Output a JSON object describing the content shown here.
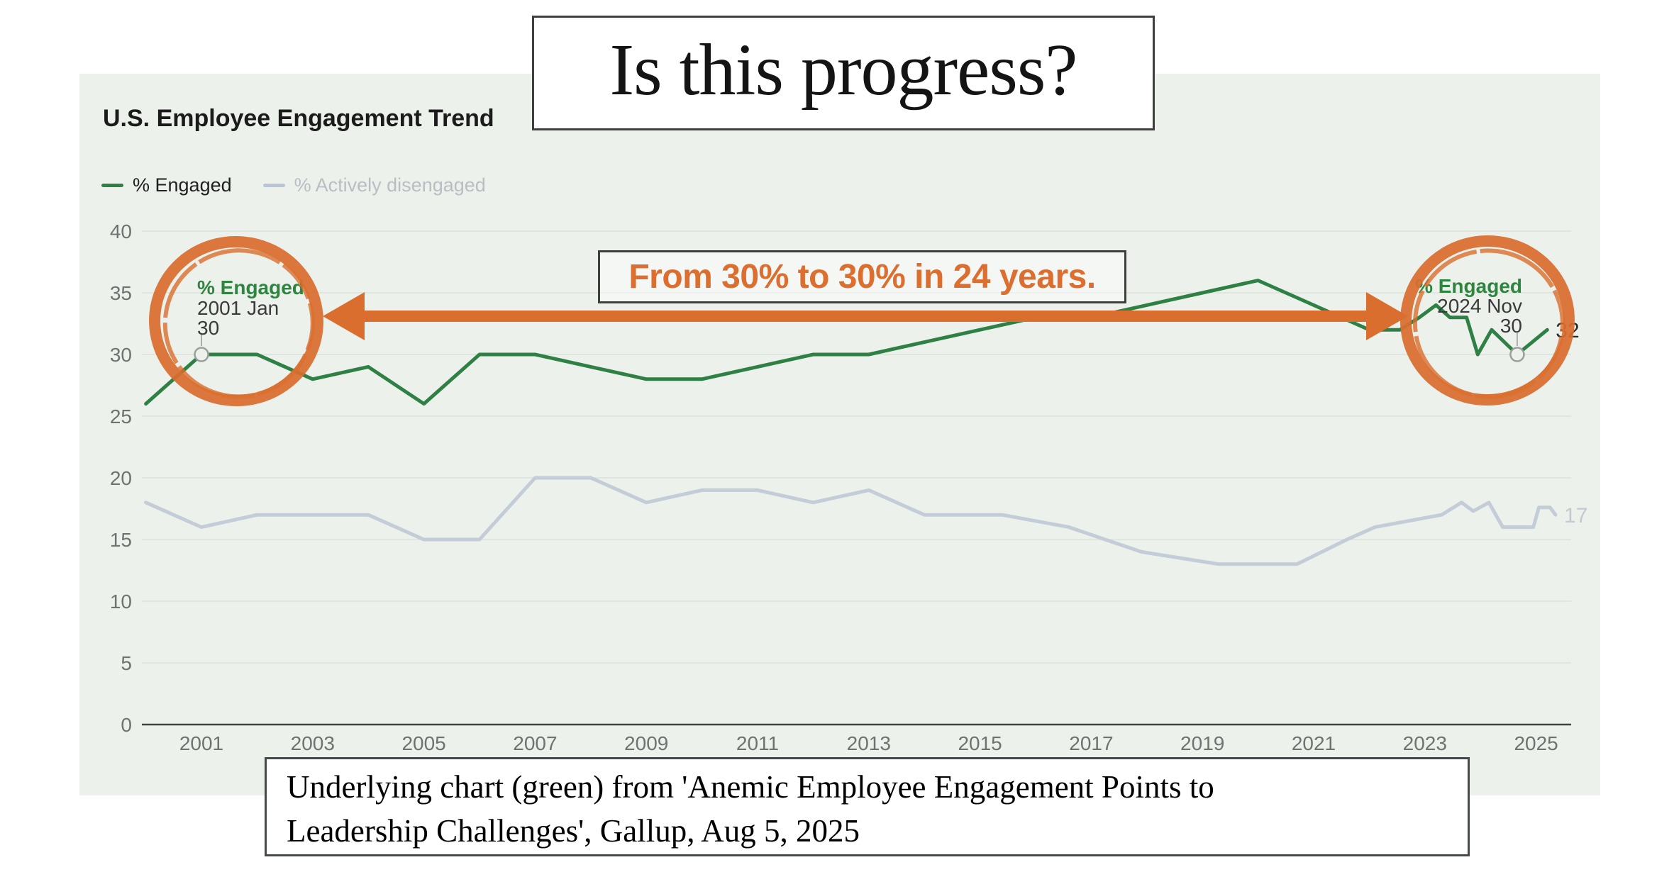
{
  "header": {
    "big_question": "Is this progress?"
  },
  "chart_panel": {
    "title": "U.S. Employee Engagement Trend",
    "legend": [
      {
        "label": "% Engaged",
        "swatch_color": "#2f8044",
        "text_color": "#202020"
      },
      {
        "label": "% Actively disengaged",
        "swatch_color": "#b9c4d6",
        "text_color": "#b9bec3"
      }
    ],
    "colors": {
      "panel_bg": "#edf1ec",
      "gridline": "#dbe1da",
      "axis_line": "#41453f",
      "tick_text": "#6e736f"
    }
  },
  "annotations": {
    "arrow_label": "From 30% to 30% in 24 years.",
    "accent_orange": "#d96e2e",
    "left_callout": {
      "series": "% Engaged",
      "date": "2001 Jan",
      "value": "30"
    },
    "right_callout": {
      "series": "% Engaged",
      "date": "2024 Nov",
      "value": "30"
    },
    "caption_line1": "Underlying chart (green) from 'Anemic Employee Engagement Points to",
    "caption_line2": "Leadership Challenges', Gallup, Aug 5, 2025"
  },
  "chart_data": {
    "type": "line",
    "title": "U.S. Employee Engagement Trend",
    "xlabel": "",
    "ylabel": "",
    "xlim": [
      2000,
      2025.6
    ],
    "ylim": [
      0,
      40
    ],
    "grid": true,
    "legend_position": "top-left",
    "x_ticks": [
      2001,
      2003,
      2005,
      2007,
      2009,
      2011,
      2013,
      2015,
      2017,
      2019,
      2021,
      2023,
      2025
    ],
    "y_ticks": [
      0,
      5,
      10,
      15,
      20,
      25,
      30,
      35,
      40
    ],
    "series": [
      {
        "name": "% Engaged",
        "color": "#2f8044",
        "end_label": "32",
        "end_label_color": "#2b2b2b",
        "points": [
          [
            2000,
            26
          ],
          [
            2001,
            30
          ],
          [
            2002,
            30
          ],
          [
            2003,
            28
          ],
          [
            2004,
            29
          ],
          [
            2005,
            26
          ],
          [
            2006,
            30
          ],
          [
            2007,
            30
          ],
          [
            2008,
            29
          ],
          [
            2009,
            28
          ],
          [
            2010,
            28
          ],
          [
            2011,
            29
          ],
          [
            2012,
            30
          ],
          [
            2013,
            30
          ],
          [
            2014,
            31
          ],
          [
            2015,
            32
          ],
          [
            2016,
            33
          ],
          [
            2017,
            33
          ],
          [
            2018,
            34
          ],
          [
            2019,
            35
          ],
          [
            2020,
            36
          ],
          [
            2021,
            34
          ],
          [
            2022,
            32
          ],
          [
            2022.55,
            32
          ],
          [
            2022.9,
            33
          ],
          [
            2023.2,
            34
          ],
          [
            2023.45,
            33
          ],
          [
            2023.75,
            33
          ],
          [
            2023.95,
            30
          ],
          [
            2024.2,
            32
          ],
          [
            2024.66,
            30
          ],
          [
            2025.2,
            32
          ]
        ]
      },
      {
        "name": "% Actively disengaged",
        "color": "#c3ccd7",
        "end_label": "17",
        "end_label_color": "#c4c9ce",
        "points": [
          [
            2000,
            18
          ],
          [
            2001,
            16
          ],
          [
            2002,
            17
          ],
          [
            2003,
            17
          ],
          [
            2004,
            17
          ],
          [
            2005,
            15
          ],
          [
            2006,
            15
          ],
          [
            2007,
            20
          ],
          [
            2008,
            20
          ],
          [
            2009,
            18
          ],
          [
            2010,
            19
          ],
          [
            2011,
            19
          ],
          [
            2012,
            18
          ],
          [
            2013,
            19
          ],
          [
            2014,
            17
          ],
          [
            2015.4,
            17
          ],
          [
            2016.6,
            16
          ],
          [
            2017.9,
            14
          ],
          [
            2019.3,
            13
          ],
          [
            2020.7,
            13
          ],
          [
            2021.6,
            15
          ],
          [
            2022.1,
            16
          ],
          [
            2023.3,
            17
          ],
          [
            2023.66,
            18
          ],
          [
            2023.87,
            17.3
          ],
          [
            2024.15,
            18
          ],
          [
            2024.4,
            16
          ],
          [
            2024.95,
            16
          ],
          [
            2025.05,
            17.6
          ],
          [
            2025.25,
            17.6
          ],
          [
            2025.35,
            17
          ]
        ]
      }
    ],
    "markers": [
      {
        "series": "% Engaged",
        "x": 2001,
        "y": 30,
        "label": "2001 Jan = 30"
      },
      {
        "series": "% Engaged",
        "x": 2024.66,
        "y": 30,
        "label": "2024 Nov = 30"
      }
    ]
  }
}
